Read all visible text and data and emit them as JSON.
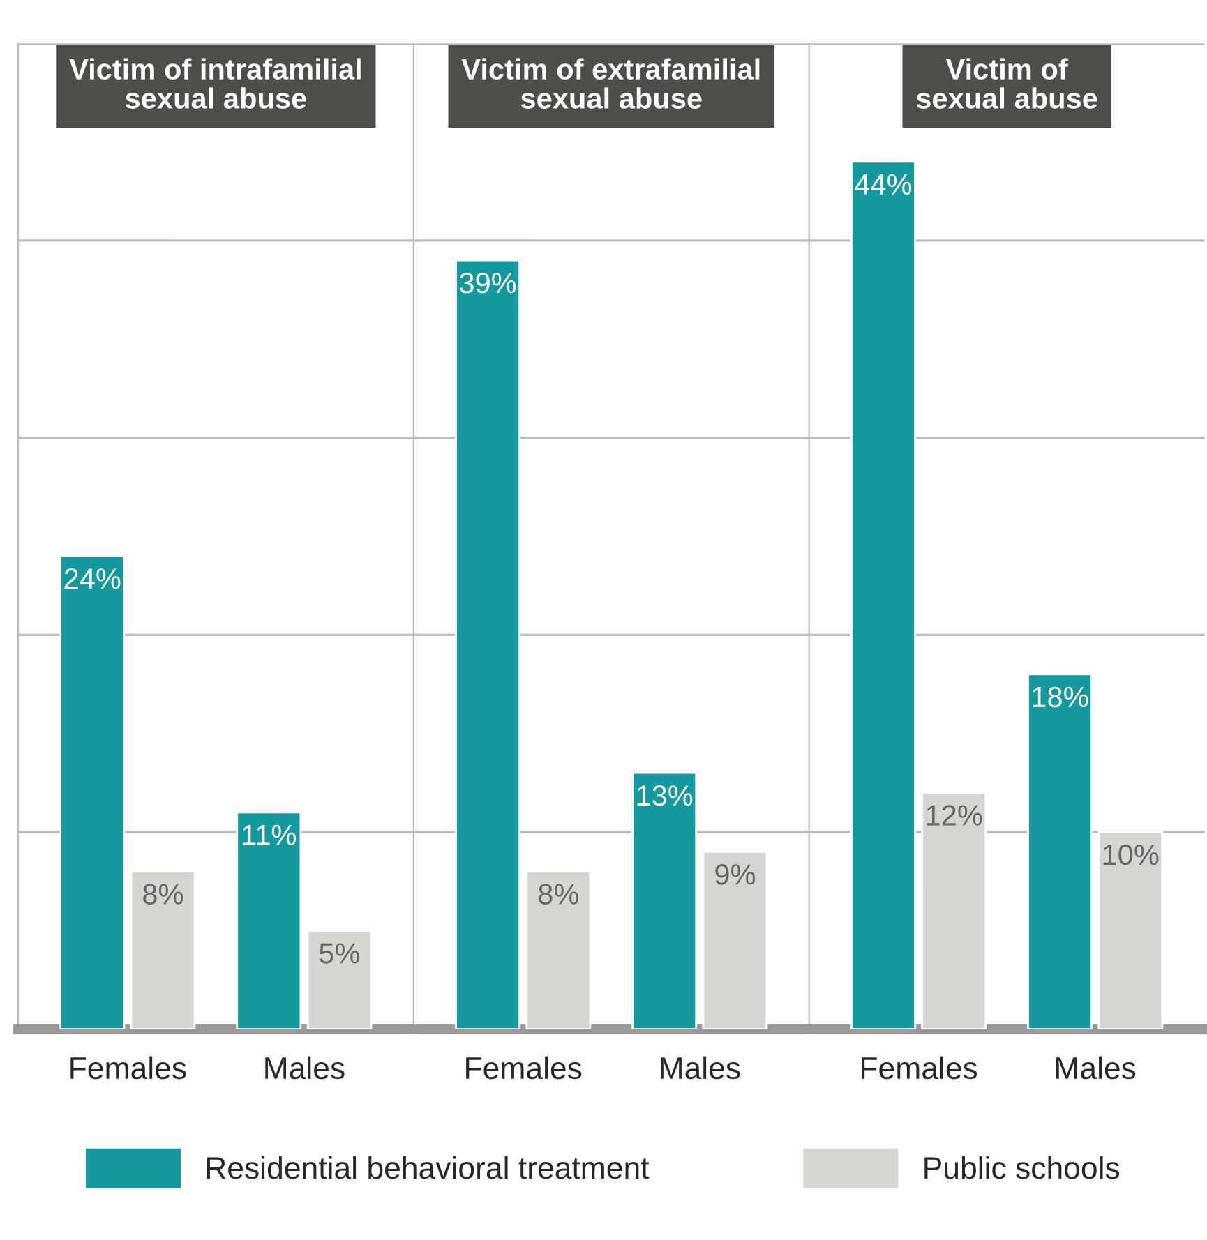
{
  "chart_data": [
    {
      "type": "bar",
      "title": "Victim of intrafamilial\nsexual abuse",
      "categories": [
        "Females",
        "Males"
      ],
      "series": [
        {
          "name": "Residential behavioral treatment",
          "color": "#15999f",
          "values": [
            24,
            11
          ],
          "value_labels": [
            "24%",
            "11%"
          ]
        },
        {
          "name": "Public schools",
          "color": "#d5d5d2",
          "values": [
            8,
            5
          ],
          "value_labels": [
            "8%",
            "5%"
          ]
        }
      ],
      "ylim": [
        0,
        50
      ],
      "yticks": [
        {
          "value": 0,
          "label": null
        },
        {
          "value": 10,
          "label": null
        },
        {
          "value": 20,
          "label": null
        },
        {
          "value": 30,
          "label": null
        },
        {
          "value": 40,
          "label": null
        },
        {
          "value": 50,
          "label": null
        }
      ],
      "grid": "y",
      "tick_labels": "x",
      "legend": "bottom"
    },
    {
      "type": "bar",
      "title": "Victim of extrafamilial\nsexual abuse",
      "categories": [
        "Females",
        "Males"
      ],
      "series": [
        {
          "name": "Residential behavioral treatment",
          "color": "#15999f",
          "values": [
            39,
            13
          ],
          "value_labels": [
            "39%",
            "13%"
          ]
        },
        {
          "name": "Public schools",
          "color": "#d5d5d2",
          "values": [
            8,
            9
          ],
          "value_labels": [
            "8%",
            "9%"
          ]
        }
      ],
      "ylim": [
        0,
        50
      ],
      "yticks": [
        {
          "value": 0,
          "label": null
        },
        {
          "value": 10,
          "label": null
        },
        {
          "value": 20,
          "label": null
        },
        {
          "value": 30,
          "label": null
        },
        {
          "value": 40,
          "label": null
        },
        {
          "value": 50,
          "label": null
        }
      ],
      "grid": "y",
      "tick_labels": "x",
      "legend": "bottom"
    },
    {
      "type": "bar",
      "title": "Victim of\nsexual abuse",
      "categories": [
        "Females",
        "Males"
      ],
      "series": [
        {
          "name": "Residential behavioral treatment",
          "color": "#15999f",
          "values": [
            44,
            18
          ],
          "value_labels": [
            "44%",
            "18%"
          ]
        },
        {
          "name": "Public schools",
          "color": "#d5d5d2",
          "values": [
            12,
            10
          ],
          "value_labels": [
            "12%",
            "10%"
          ]
        }
      ],
      "ylim": [
        0,
        50
      ],
      "yticks": [
        {
          "value": 0,
          "label": null
        },
        {
          "value": 10,
          "label": null
        },
        {
          "value": 20,
          "label": null
        },
        {
          "value": 30,
          "label": null
        },
        {
          "value": 40,
          "label": null
        },
        {
          "value": 50,
          "label": null
        }
      ],
      "grid": "y",
      "tick_labels": "x",
      "legend": "bottom"
    }
  ]
}
